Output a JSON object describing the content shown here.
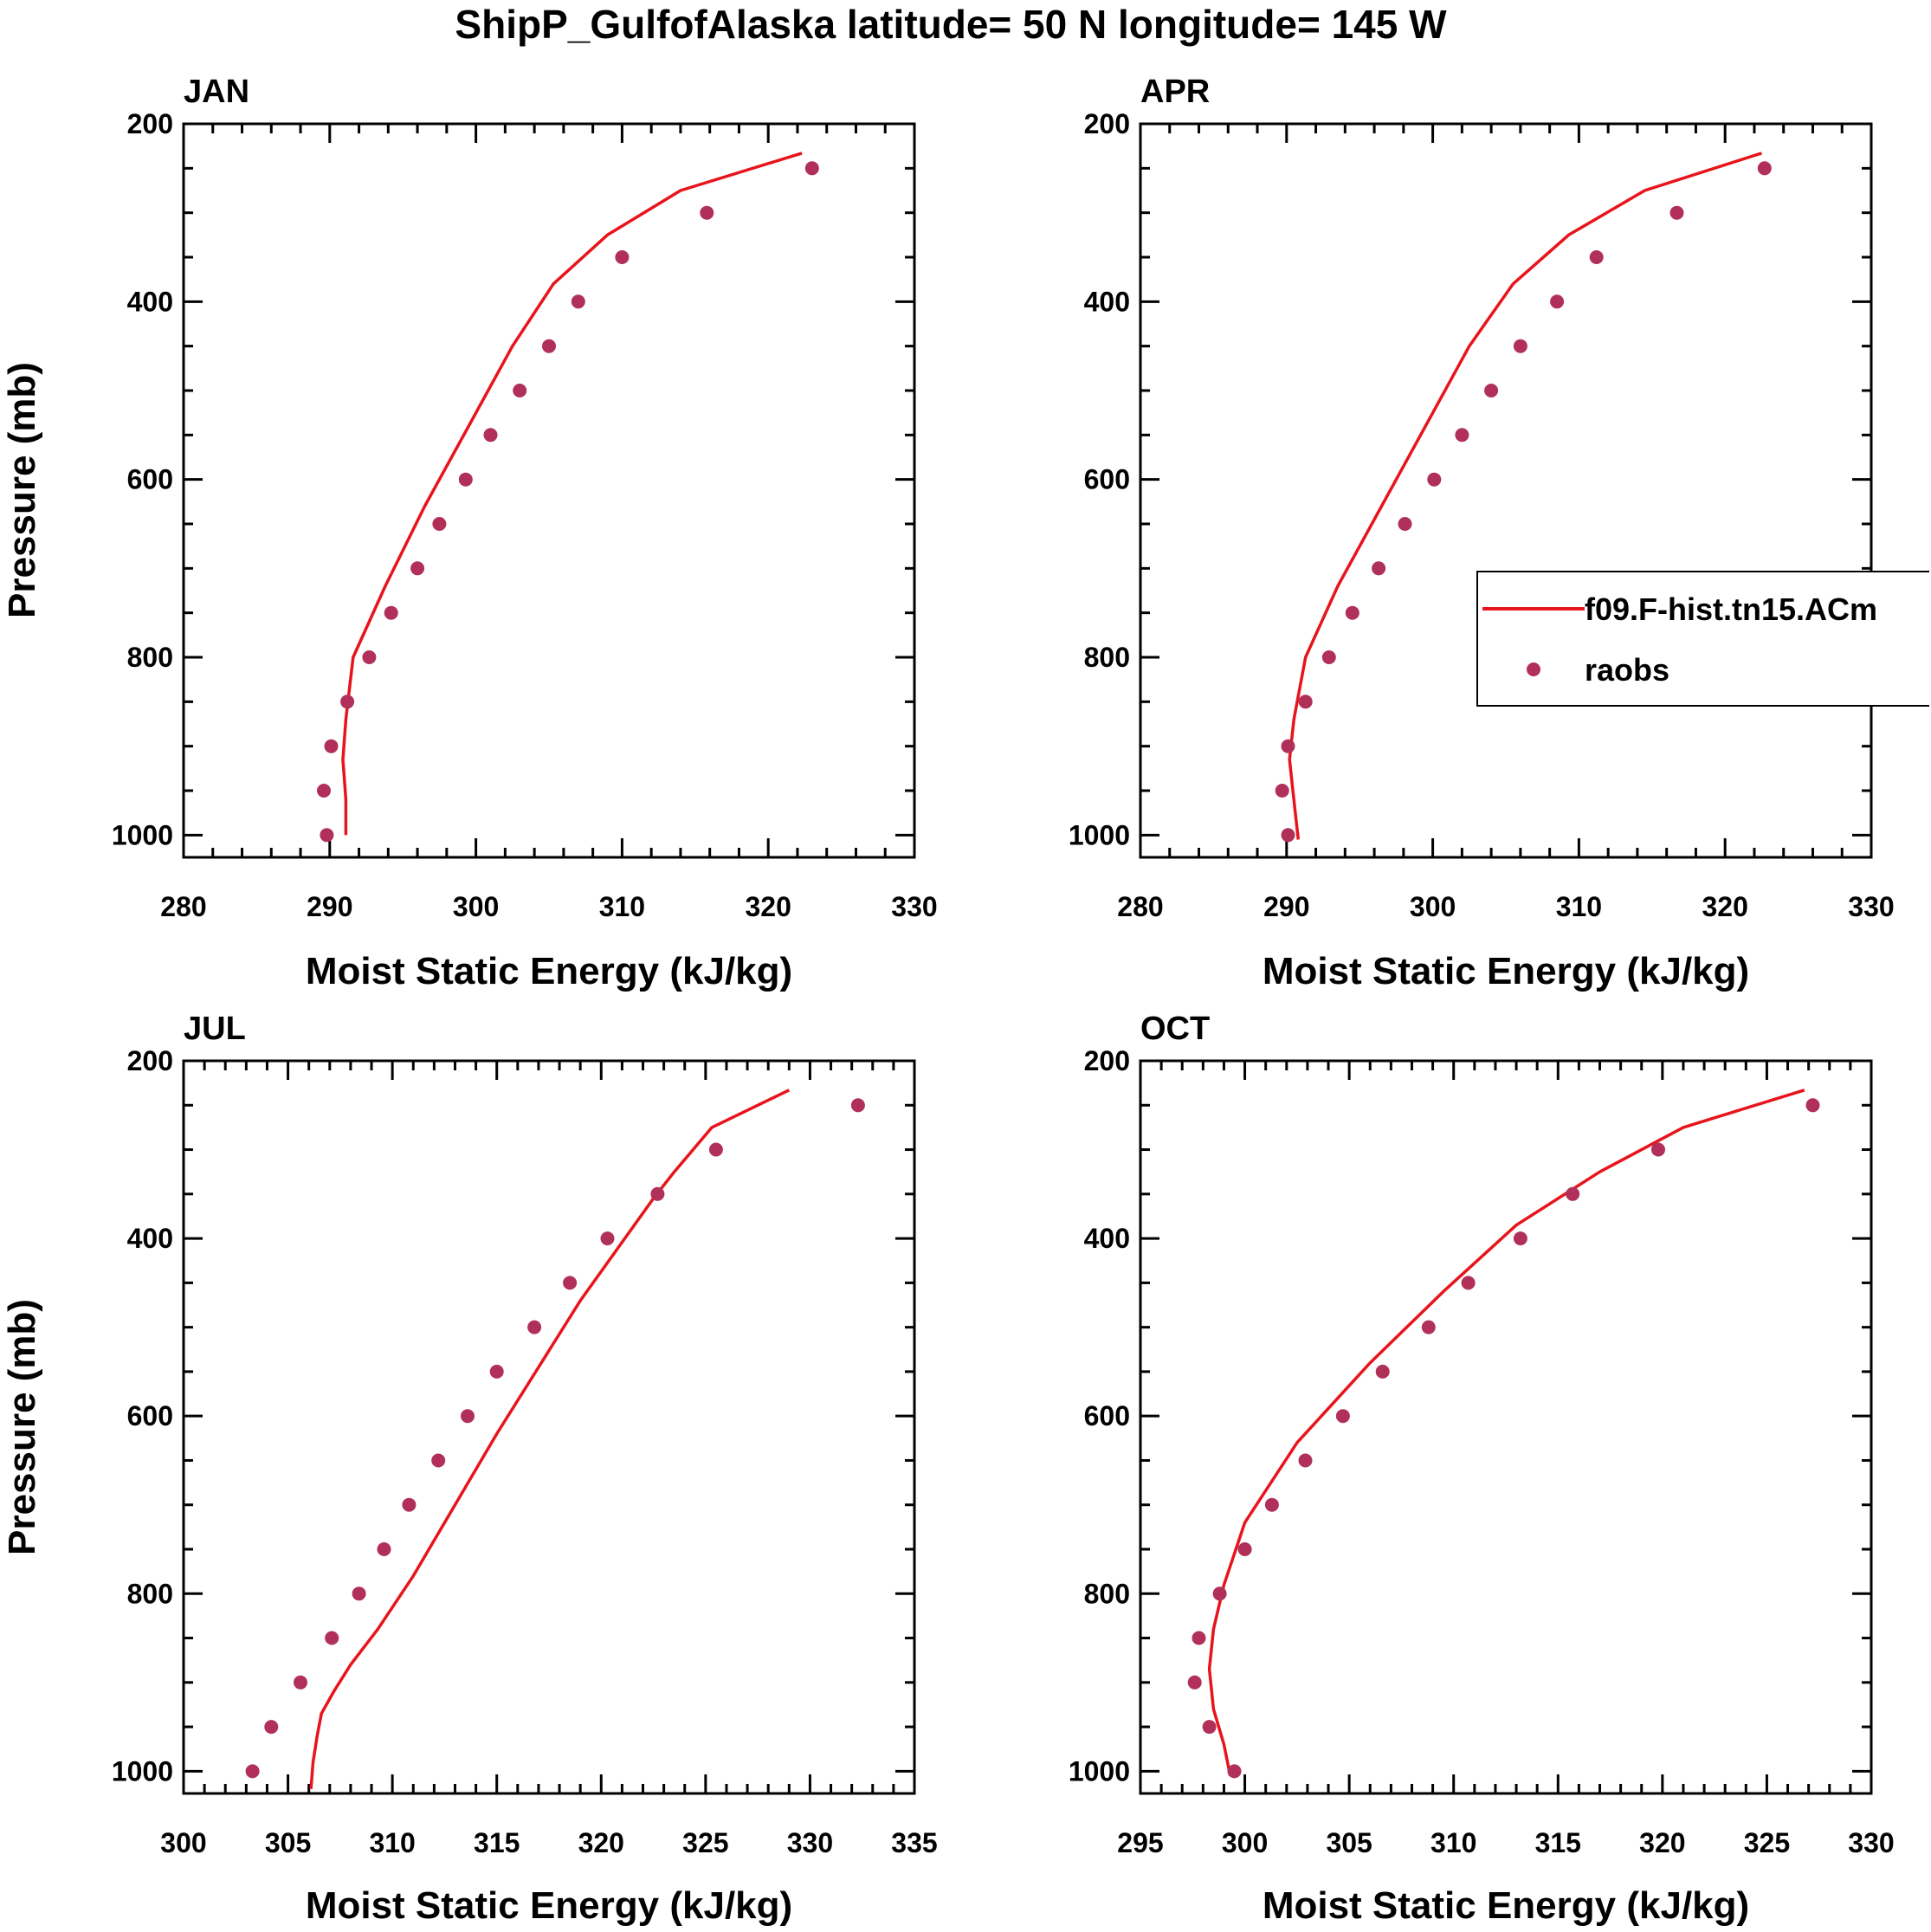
{
  "figure": {
    "title": "ShipP_GulfofAlaska  latitude= 50 N longitude= 145 W"
  },
  "colors": {
    "model_line": "#e8141c",
    "raobs_marker": "#b0305a"
  },
  "legend": {
    "entries": [
      {
        "label": "f09.F-hist.tn15.ACm",
        "kind": "line"
      },
      {
        "label": "raobs",
        "kind": "marker"
      }
    ]
  },
  "chart_data": [
    {
      "type": "line",
      "title": "JAN",
      "xlabel": "Moist Static Energy (kJ/kg)",
      "ylabel": "Pressure (mb)",
      "xlim": [
        280,
        330
      ],
      "ylim": [
        200,
        1025
      ],
      "y_inverted": true,
      "xticks": [
        280,
        290,
        300,
        310,
        320,
        330
      ],
      "yticks": [
        200,
        400,
        600,
        800,
        1000
      ],
      "series": [
        {
          "name": "f09.F-hist.tn15.ACm",
          "style": "line",
          "x": [
            322.3,
            314.0,
            309.0,
            305.3,
            302.5,
            299.5,
            296.5,
            293.8,
            291.6,
            291.1,
            290.9,
            291.1,
            291.1
          ],
          "y": [
            233,
            275,
            325,
            380,
            450,
            540,
            630,
            720,
            800,
            870,
            915,
            960,
            1000
          ]
        },
        {
          "name": "raobs",
          "style": "marker",
          "x": [
            323.0,
            315.8,
            310.0,
            307.0,
            305.0,
            303.0,
            301.0,
            299.3,
            297.5,
            296.0,
            294.2,
            292.7,
            291.2,
            290.1,
            289.6,
            289.8
          ],
          "y": [
            250,
            300,
            350,
            400,
            450,
            500,
            550,
            600,
            650,
            700,
            750,
            800,
            850,
            900,
            950,
            1000
          ]
        }
      ]
    },
    {
      "type": "line",
      "title": "APR",
      "xlabel": "Moist Static Energy (kJ/kg)",
      "ylabel": "",
      "xlim": [
        280,
        330
      ],
      "ylim": [
        200,
        1025
      ],
      "y_inverted": true,
      "xticks": [
        280,
        290,
        300,
        310,
        320,
        330
      ],
      "yticks": [
        200,
        400,
        600,
        800,
        1000
      ],
      "show_legend": true,
      "series": [
        {
          "name": "f09.F-hist.tn15.ACm",
          "style": "line",
          "x": [
            322.5,
            314.5,
            309.3,
            305.5,
            302.5,
            299.5,
            296.5,
            293.5,
            291.3,
            290.5,
            290.2,
            290.5,
            290.8
          ],
          "y": [
            233,
            275,
            325,
            380,
            450,
            540,
            630,
            720,
            800,
            870,
            915,
            960,
            1005
          ]
        },
        {
          "name": "raobs",
          "style": "marker",
          "x": [
            322.7,
            316.7,
            311.2,
            308.5,
            306.0,
            304.0,
            302.0,
            300.1,
            298.1,
            296.3,
            294.5,
            292.9,
            291.3,
            290.1,
            289.7,
            290.1
          ],
          "y": [
            250,
            300,
            350,
            400,
            450,
            500,
            550,
            600,
            650,
            700,
            750,
            800,
            850,
            900,
            950,
            1000
          ]
        }
      ]
    },
    {
      "type": "line",
      "title": "JUL",
      "xlabel": "Moist Static Energy (kJ/kg)",
      "ylabel": "Pressure (mb)",
      "xlim": [
        300,
        335
      ],
      "ylim": [
        200,
        1025
      ],
      "y_inverted": true,
      "xticks": [
        300,
        305,
        310,
        315,
        320,
        325,
        330,
        335
      ],
      "yticks": [
        200,
        400,
        600,
        800,
        1000
      ],
      "series": [
        {
          "name": "f09.F-hist.tn15.ACm",
          "style": "line",
          "x": [
            329.0,
            325.3,
            323.5,
            322.5,
            319.0,
            315.0,
            313.0,
            311.0,
            309.3,
            308.0,
            307.2,
            306.6,
            306.4,
            306.2,
            306.1
          ],
          "y": [
            233,
            275,
            325,
            355,
            470,
            620,
            700,
            780,
            840,
            880,
            910,
            935,
            960,
            990,
            1020
          ]
        },
        {
          "name": "raobs",
          "style": "marker",
          "x": [
            332.3,
            325.5,
            322.7,
            320.3,
            318.5,
            316.8,
            315.0,
            313.6,
            312.2,
            310.8,
            309.6,
            308.4,
            307.1,
            305.6,
            304.2,
            303.3
          ],
          "y": [
            250,
            300,
            350,
            400,
            450,
            500,
            550,
            600,
            650,
            700,
            750,
            800,
            850,
            900,
            950,
            1000
          ]
        }
      ]
    },
    {
      "type": "line",
      "title": "OCT",
      "xlabel": "Moist Static Energy (kJ/kg)",
      "ylabel": "",
      "xlim": [
        295,
        330
      ],
      "ylim": [
        200,
        1025
      ],
      "y_inverted": true,
      "xticks": [
        295,
        300,
        305,
        310,
        315,
        320,
        325,
        330
      ],
      "yticks": [
        200,
        400,
        600,
        800,
        1000
      ],
      "series": [
        {
          "name": "f09.F-hist.tn15.ACm",
          "style": "line",
          "x": [
            326.8,
            321.0,
            317.0,
            313.0,
            309.5,
            306.0,
            302.5,
            300.0,
            299.0,
            298.5,
            298.3,
            298.5,
            299.0,
            299.3
          ],
          "y": [
            233,
            275,
            325,
            385,
            460,
            540,
            630,
            720,
            790,
            840,
            885,
            930,
            970,
            1005
          ]
        },
        {
          "name": "raobs",
          "style": "marker",
          "x": [
            327.2,
            319.8,
            315.7,
            313.2,
            310.7,
            308.8,
            306.6,
            304.7,
            302.9,
            301.3,
            300.0,
            298.8,
            297.8,
            297.6,
            298.3,
            299.5
          ],
          "y": [
            250,
            300,
            350,
            400,
            450,
            500,
            550,
            600,
            650,
            700,
            750,
            800,
            850,
            900,
            950,
            1000
          ]
        }
      ]
    }
  ]
}
